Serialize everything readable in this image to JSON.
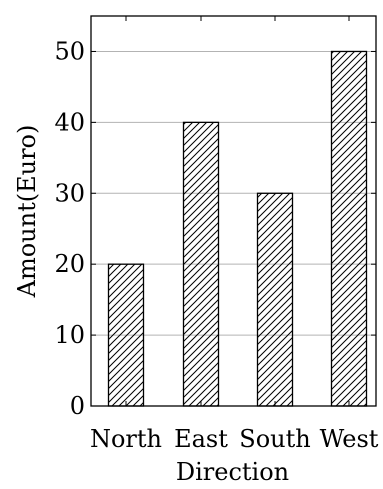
{
  "chart_data": {
    "type": "bar",
    "categories": [
      "North",
      "East",
      "South",
      "West"
    ],
    "values": [
      20,
      40,
      30,
      50
    ],
    "xlabel": "Direction",
    "ylabel": "Amount(Euro)",
    "ylim": [
      0,
      55
    ],
    "yticks": [
      0,
      10,
      20,
      30,
      40,
      50
    ],
    "grid": "horizontal",
    "bar_fill": "north-east hatch",
    "colors": {
      "bar_stroke": "#000000",
      "hatch": "#000000",
      "grid": "#b3b3b3",
      "background": "#ffffff"
    }
  }
}
